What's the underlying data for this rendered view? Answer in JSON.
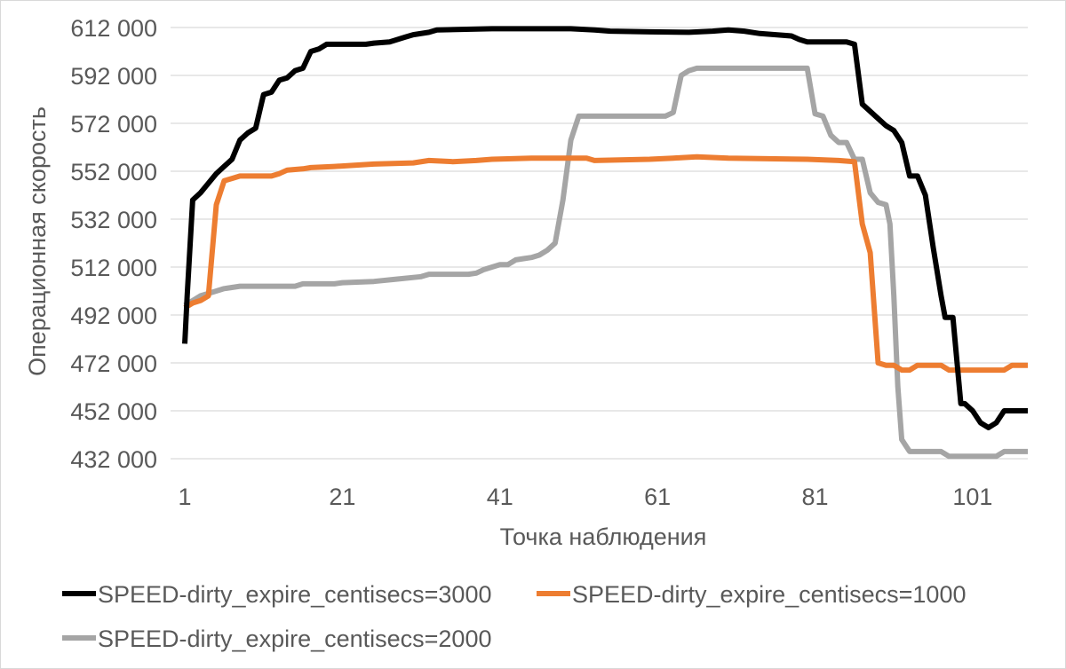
{
  "chart_data": {
    "type": "line",
    "title": "",
    "xlabel": "Точка наблюдения",
    "ylabel": "Операционная скорость",
    "ylim": [
      432000,
      612000
    ],
    "yticks": [
      432000,
      452000,
      472000,
      492000,
      512000,
      532000,
      552000,
      572000,
      592000,
      612000
    ],
    "ytick_labels": [
      "432 000",
      "452 000",
      "472 000",
      "492 000",
      "512 000",
      "532 000",
      "552 000",
      "572 000",
      "592 000",
      "612 000"
    ],
    "xlim": [
      1,
      108
    ],
    "xticks": [
      1,
      21,
      41,
      61,
      81,
      101
    ],
    "xtick_labels": [
      "1",
      "21",
      "41",
      "61",
      "81",
      "101"
    ],
    "grid": true,
    "legend_position": "bottom",
    "series": [
      {
        "name": "SPEED-dirty_expire_centisecs=3000",
        "color": "#000000",
        "points": [
          [
            1,
            480000
          ],
          [
            1.3,
            500000
          ],
          [
            2,
            540000
          ],
          [
            3,
            543000
          ],
          [
            4,
            547000
          ],
          [
            5,
            551000
          ],
          [
            6,
            554000
          ],
          [
            7,
            557000
          ],
          [
            8,
            565000
          ],
          [
            9,
            568000
          ],
          [
            10,
            570000
          ],
          [
            11,
            584000
          ],
          [
            12,
            585000
          ],
          [
            13,
            590000
          ],
          [
            14,
            591000
          ],
          [
            15,
            594000
          ],
          [
            16,
            595000
          ],
          [
            17,
            602000
          ],
          [
            18,
            603000
          ],
          [
            19,
            605000
          ],
          [
            20,
            605000
          ],
          [
            24,
            605000
          ],
          [
            25,
            605500
          ],
          [
            27,
            606000
          ],
          [
            29,
            608000
          ],
          [
            30,
            609000
          ],
          [
            32,
            610000
          ],
          [
            33,
            611000
          ],
          [
            40,
            611500
          ],
          [
            50,
            611500
          ],
          [
            53,
            611000
          ],
          [
            55,
            610500
          ],
          [
            60,
            610200
          ],
          [
            65,
            610000
          ],
          [
            68,
            610500
          ],
          [
            70,
            611000
          ],
          [
            72,
            610500
          ],
          [
            74,
            609500
          ],
          [
            76,
            609000
          ],
          [
            78,
            608500
          ],
          [
            79,
            607000
          ],
          [
            80,
            606000
          ],
          [
            85,
            606000
          ],
          [
            86,
            605000
          ],
          [
            87,
            580000
          ],
          [
            88,
            577000
          ],
          [
            89,
            574000
          ],
          [
            90,
            571000
          ],
          [
            91,
            569000
          ],
          [
            92,
            564000
          ],
          [
            93,
            550000
          ],
          [
            94,
            550000
          ],
          [
            95,
            542000
          ],
          [
            96,
            520000
          ],
          [
            97,
            500000
          ],
          [
            97.5,
            491000
          ],
          [
            98.5,
            491000
          ],
          [
            99.5,
            455000
          ],
          [
            100,
            455000
          ],
          [
            101,
            452000
          ],
          [
            102,
            447000
          ],
          [
            103,
            445000
          ],
          [
            104,
            447000
          ],
          [
            105,
            452000
          ],
          [
            108,
            452000
          ]
        ]
      },
      {
        "name": "SPEED-dirty_expire_centisecs=1000",
        "color": "#ed7d31",
        "points": [
          [
            1,
            495000
          ],
          [
            2,
            497000
          ],
          [
            3,
            498000
          ],
          [
            4,
            500000
          ],
          [
            5,
            538000
          ],
          [
            6,
            548000
          ],
          [
            7,
            549000
          ],
          [
            8,
            550000
          ],
          [
            9,
            550000
          ],
          [
            10,
            550000
          ],
          [
            12,
            550000
          ],
          [
            13,
            551000
          ],
          [
            14,
            552500
          ],
          [
            16,
            553000
          ],
          [
            17,
            553500
          ],
          [
            20,
            554000
          ],
          [
            25,
            555000
          ],
          [
            30,
            555500
          ],
          [
            32,
            556500
          ],
          [
            35,
            556000
          ],
          [
            38,
            556500
          ],
          [
            40,
            557000
          ],
          [
            45,
            557500
          ],
          [
            52,
            557500
          ],
          [
            53,
            556500
          ],
          [
            60,
            557000
          ],
          [
            63,
            557500
          ],
          [
            66,
            558000
          ],
          [
            70,
            557500
          ],
          [
            80,
            557000
          ],
          [
            84,
            556500
          ],
          [
            86,
            556000
          ],
          [
            87,
            530000
          ],
          [
            88,
            518000
          ],
          [
            89,
            472000
          ],
          [
            90,
            471000
          ],
          [
            91,
            471000
          ],
          [
            92,
            469000
          ],
          [
            93,
            469000
          ],
          [
            94,
            471000
          ],
          [
            97,
            471000
          ],
          [
            98,
            469000
          ],
          [
            105,
            469000
          ],
          [
            106,
            471000
          ],
          [
            108,
            471000
          ]
        ]
      },
      {
        "name": "SPEED-dirty_expire_centisecs=2000",
        "color": "#a5a5a5",
        "points": [
          [
            1,
            496000
          ],
          [
            2,
            498000
          ],
          [
            3,
            500000
          ],
          [
            4,
            501000
          ],
          [
            5,
            502000
          ],
          [
            6,
            503000
          ],
          [
            8,
            504000
          ],
          [
            15,
            504000
          ],
          [
            16,
            505000
          ],
          [
            20,
            505000
          ],
          [
            21,
            505500
          ],
          [
            25,
            506000
          ],
          [
            28,
            507000
          ],
          [
            31,
            508000
          ],
          [
            32,
            509000
          ],
          [
            37,
            509000
          ],
          [
            38,
            509500
          ],
          [
            39,
            511000
          ],
          [
            40,
            512000
          ],
          [
            41,
            513000
          ],
          [
            42,
            513000
          ],
          [
            43,
            515000
          ],
          [
            44,
            515500
          ],
          [
            45,
            516000
          ],
          [
            46,
            517000
          ],
          [
            47,
            519000
          ],
          [
            48,
            522000
          ],
          [
            49,
            540000
          ],
          [
            50,
            565000
          ],
          [
            51,
            575000
          ],
          [
            62,
            575000
          ],
          [
            63,
            576500
          ],
          [
            64,
            592000
          ],
          [
            65,
            594000
          ],
          [
            66,
            595000
          ],
          [
            80,
            595000
          ],
          [
            81,
            576000
          ],
          [
            82,
            575000
          ],
          [
            83,
            567000
          ],
          [
            84,
            564000
          ],
          [
            85,
            564000
          ],
          [
            86,
            557000
          ],
          [
            87,
            557000
          ],
          [
            88,
            543000
          ],
          [
            89,
            539000
          ],
          [
            90,
            538000
          ],
          [
            90.5,
            530000
          ],
          [
            91,
            500000
          ],
          [
            91.5,
            462000
          ],
          [
            92,
            440000
          ],
          [
            93,
            435000
          ],
          [
            95,
            435000
          ],
          [
            97,
            435000
          ],
          [
            98,
            433000
          ],
          [
            104,
            433000
          ],
          [
            105,
            435000
          ],
          [
            108,
            435000
          ]
        ]
      }
    ]
  }
}
